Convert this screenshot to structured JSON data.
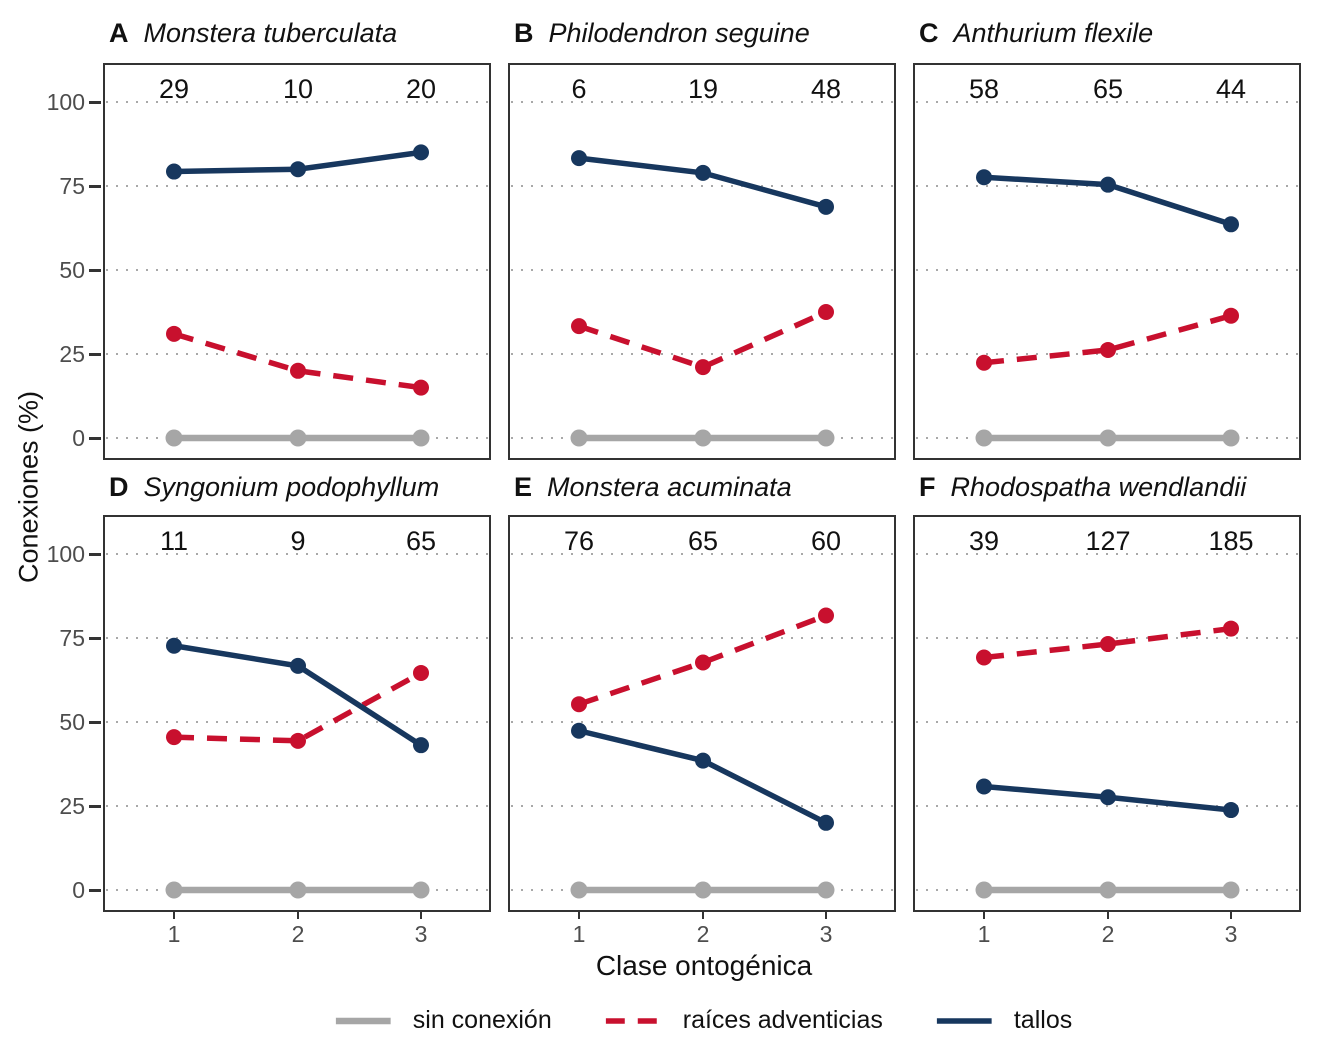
{
  "figure": {
    "background": "#ffffff",
    "text_color": "#111111",
    "tick_text_color": "#4d4d4d",
    "grid_dot_color": "#a8a8a8",
    "panel_border_color": "#333333"
  },
  "chart_data": {
    "type": "line",
    "title": "",
    "xlabel": "Clase ontogénica",
    "ylabel": "Conexiones (%)",
    "x": [
      1,
      2,
      3
    ],
    "yticks": [
      0,
      25,
      50,
      75,
      100
    ],
    "ylim": [
      -7,
      112
    ],
    "grid": "dotted horizontal lines at yticks",
    "legend_position": "bottom-center",
    "series_styles": [
      {
        "name": "sin conexión",
        "color": "#a6a6a6",
        "dash": "solid"
      },
      {
        "name": "raíces adventicias",
        "color": "#c8102e",
        "dash": "dashed"
      },
      {
        "name": "tallos",
        "color": "#17375e",
        "dash": "solid"
      }
    ],
    "facets": [
      {
        "letter": "A",
        "species": "Monstera tuberculata",
        "counts": [
          29,
          10,
          20
        ],
        "series": [
          {
            "name": "sin conexión",
            "values": [
              0,
              0,
              0
            ]
          },
          {
            "name": "raíces adventicias",
            "values": [
              31,
              20,
              15
            ]
          },
          {
            "name": "tallos",
            "values": [
              79.3,
              80,
              85
            ]
          }
        ]
      },
      {
        "letter": "B",
        "species": "Philodendron seguine",
        "counts": [
          6,
          19,
          48
        ],
        "series": [
          {
            "name": "sin conexión",
            "values": [
              0,
              0,
              0
            ]
          },
          {
            "name": "raíces adventicias",
            "values": [
              33.3,
              21.1,
              37.5
            ]
          },
          {
            "name": "tallos",
            "values": [
              83.3,
              78.9,
              68.8
            ]
          }
        ]
      },
      {
        "letter": "C",
        "species": "Anthurium flexile",
        "counts": [
          58,
          65,
          44
        ],
        "series": [
          {
            "name": "sin conexión",
            "values": [
              0,
              0,
              0
            ]
          },
          {
            "name": "raíces adventicias",
            "values": [
              22.4,
              26.2,
              36.4
            ]
          },
          {
            "name": "tallos",
            "values": [
              77.6,
              75.4,
              63.6
            ]
          }
        ]
      },
      {
        "letter": "D",
        "species": "Syngonium podophyllum",
        "counts": [
          11,
          9,
          65
        ],
        "series": [
          {
            "name": "sin conexión",
            "values": [
              0,
              0,
              0
            ]
          },
          {
            "name": "raíces adventicias",
            "values": [
              45.5,
              44.4,
              64.6
            ]
          },
          {
            "name": "tallos",
            "values": [
              72.7,
              66.7,
              43.1
            ]
          }
        ]
      },
      {
        "letter": "E",
        "species": "Monstera acuminata",
        "counts": [
          76,
          65,
          60
        ],
        "series": [
          {
            "name": "sin conexión",
            "values": [
              0,
              0,
              0
            ]
          },
          {
            "name": "raíces adventicias",
            "values": [
              55.3,
              67.7,
              81.7
            ]
          },
          {
            "name": "tallos",
            "values": [
              47.4,
              38.5,
              20
            ]
          }
        ]
      },
      {
        "letter": "F",
        "species": "Rhodospatha wendlandii",
        "counts": [
          39,
          127,
          185
        ],
        "series": [
          {
            "name": "sin conexión",
            "values": [
              0,
              0,
              0
            ]
          },
          {
            "name": "raíces adventicias",
            "values": [
              69.2,
              73.2,
              77.8
            ]
          },
          {
            "name": "tallos",
            "values": [
              30.8,
              27.6,
              23.8
            ]
          }
        ]
      }
    ]
  }
}
